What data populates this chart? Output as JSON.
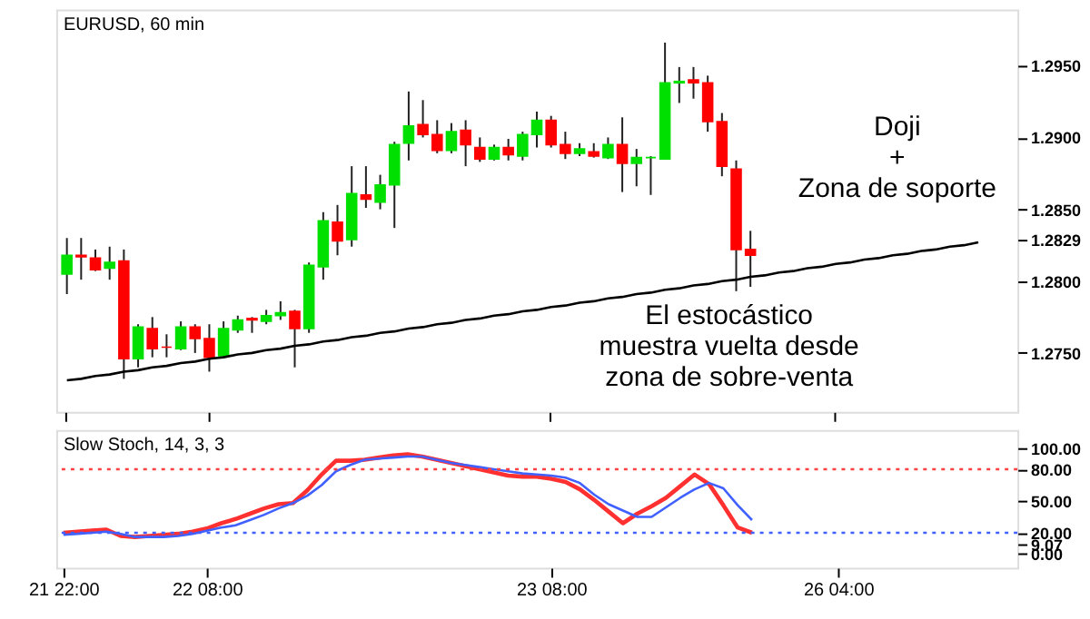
{
  "chart_data": [
    {
      "type": "candlestick",
      "title": "EURUSD, 60 min",
      "annotations": [
        "Doji\n+\nZona de soporte",
        "El estocástico\nmuestra vuelta desde\nzona de sobre-venta"
      ],
      "tick_labels": "y",
      "ylim": [
        1.2709,
        1.2989
      ],
      "yticks": [
        {
          "value": 1.275,
          "label": "1.2750"
        },
        {
          "value": 1.28,
          "label": "1.2800"
        },
        {
          "value": 1.2829,
          "label": "1.2829"
        },
        {
          "value": 1.285,
          "label": "1.2850"
        },
        {
          "value": 1.29,
          "label": "1.2900"
        },
        {
          "value": 1.295,
          "label": "1.2950"
        }
      ],
      "ohlc": [
        [
          1.2805,
          1.283,
          1.2791,
          1.2818
        ],
        [
          1.2818,
          1.283,
          1.2801,
          1.2817
        ],
        [
          1.2816,
          1.2822,
          1.2807,
          1.2808
        ],
        [
          1.2809,
          1.2824,
          1.2801,
          1.2813
        ],
        [
          1.2814,
          1.2822,
          1.2732,
          1.2746
        ],
        [
          1.2746,
          1.277,
          1.274,
          1.2768
        ],
        [
          1.2767,
          1.2775,
          1.2747,
          1.2753
        ],
        [
          1.2754,
          1.2763,
          1.2747,
          1.2754
        ],
        [
          1.2753,
          1.2772,
          1.2752,
          1.2768
        ],
        [
          1.2768,
          1.277,
          1.275,
          1.276
        ],
        [
          1.276,
          1.277,
          1.2737,
          1.2747
        ],
        [
          1.2748,
          1.2772,
          1.2747,
          1.2767
        ],
        [
          1.2766,
          1.2776,
          1.2764,
          1.2773
        ],
        [
          1.2774,
          1.2775,
          1.2764,
          1.2773
        ],
        [
          1.2772,
          1.278,
          1.277,
          1.2776
        ],
        [
          1.2776,
          1.2786,
          1.2773,
          1.2778
        ],
        [
          1.2779,
          1.278,
          1.274,
          1.2767
        ],
        [
          1.2767,
          1.2813,
          1.2764,
          1.2811
        ],
        [
          1.281,
          1.2848,
          1.2801,
          1.2842
        ],
        [
          1.2841,
          1.2853,
          1.2818,
          1.2828
        ],
        [
          1.2829,
          1.288,
          1.2824,
          1.2861
        ],
        [
          1.286,
          1.288,
          1.2851,
          1.2857
        ],
        [
          1.2855,
          1.2874,
          1.285,
          1.2867
        ],
        [
          1.2867,
          1.2897,
          1.2837,
          1.2895
        ],
        [
          1.2896,
          1.2932,
          1.2884,
          1.2908
        ],
        [
          1.2909,
          1.2926,
          1.29,
          1.2902
        ],
        [
          1.2902,
          1.2912,
          1.2889,
          1.2891
        ],
        [
          1.2891,
          1.291,
          1.2889,
          1.2904
        ],
        [
          1.2905,
          1.2912,
          1.288,
          1.2895
        ],
        [
          1.2893,
          1.29,
          1.2883,
          1.2885
        ],
        [
          1.2885,
          1.2895,
          1.2884,
          1.2893
        ],
        [
          1.2893,
          1.2899,
          1.2884,
          1.2888
        ],
        [
          1.2887,
          1.2904,
          1.2884,
          1.2902
        ],
        [
          1.2902,
          1.2918,
          1.2893,
          1.2912
        ],
        [
          1.2912,
          1.2915,
          1.2893,
          1.2895
        ],
        [
          1.2895,
          1.2904,
          1.2885,
          1.2889
        ],
        [
          1.2889,
          1.2896,
          1.2887,
          1.2892
        ],
        [
          1.289,
          1.2896,
          1.2886,
          1.2887
        ],
        [
          1.2886,
          1.29,
          1.2885,
          1.2895
        ],
        [
          1.2895,
          1.2914,
          1.2862,
          1.2882
        ],
        [
          1.2882,
          1.2892,
          1.2866,
          1.2886
        ],
        [
          1.2886,
          1.2887,
          1.286,
          1.2886
        ],
        [
          1.2885,
          1.2966,
          1.2885,
          1.2938
        ],
        [
          1.2938,
          1.2949,
          1.2924,
          1.2939
        ],
        [
          1.294,
          1.2949,
          1.2927,
          1.2938
        ],
        [
          1.2938,
          1.2943,
          1.2904,
          1.2911
        ],
        [
          1.2911,
          1.2917,
          1.2873,
          1.288
        ],
        [
          1.2878,
          1.2884,
          1.2793,
          1.2822
        ],
        [
          1.2822,
          1.2835,
          1.2796,
          1.2818
        ],
        null,
        null,
        null,
        null,
        null,
        null,
        null,
        null,
        null,
        null,
        null,
        null,
        null,
        null,
        null,
        null,
        null,
        null
      ],
      "colors": [
        "#00e000",
        "#ff0000",
        "#ff0000",
        "#00e000",
        "#ff0000",
        "#00e000",
        "#ff0000",
        "#ff0000",
        "#00e000",
        "#ff0000",
        "#ff0000",
        "#00e000",
        "#00e000",
        "#ff0000",
        "#00e000",
        "#00e000",
        "#ff0000",
        "#00e000",
        "#00e000",
        "#ff0000",
        "#00e000",
        "#ff0000",
        "#00e000",
        "#00e000",
        "#00e000",
        "#ff0000",
        "#ff0000",
        "#00e000",
        "#ff0000",
        "#ff0000",
        "#00e000",
        "#ff0000",
        "#00e000",
        "#00e000",
        "#ff0000",
        "#ff0000",
        "#00e000",
        "#ff0000",
        "#00e000",
        "#ff0000",
        "#00e000",
        "#00e000",
        "#00e000",
        "#00e000",
        "#ff0000",
        "#ff0000",
        "#ff0000",
        "#ff0000",
        "#ff0000",
        null,
        null,
        null,
        null,
        null,
        null,
        null,
        null,
        null,
        null,
        null,
        null,
        null,
        null,
        null,
        null,
        null,
        null
      ],
      "series": [
        {
          "type": "line",
          "color": "#000000",
          "values": [
            1.2731,
            1.2732,
            1.2734,
            1.2735,
            1.2737,
            1.2738,
            1.274,
            1.2741,
            1.2743,
            1.2744,
            1.2746,
            1.2747,
            1.2749,
            1.275,
            1.2752,
            1.2753,
            1.2755,
            1.2756,
            1.2758,
            1.2759,
            1.2761,
            1.2762,
            1.2764,
            1.2765,
            1.2767,
            1.2768,
            1.277,
            1.2771,
            1.2773,
            1.2774,
            1.2776,
            1.2777,
            1.2779,
            1.278,
            1.2782,
            1.2783,
            1.2785,
            1.2786,
            1.2788,
            1.2789,
            1.2791,
            1.2792,
            1.2794,
            1.2795,
            1.2797,
            1.2798,
            1.28,
            1.2801,
            1.2803,
            1.2804,
            1.2806,
            1.2807,
            1.2809,
            1.281,
            1.2812,
            1.2813,
            1.2815,
            1.2816,
            1.2818,
            1.2819,
            1.2821,
            1.2822,
            1.2824,
            1.2825,
            1.2827,
            null,
            null
          ]
        }
      ]
    },
    {
      "type": "line",
      "title": "Slow Stoch, 14, 3, 3",
      "categories": [
        "21 22:00",
        null,
        null,
        null,
        null,
        null,
        null,
        null,
        null,
        null,
        "22 08:00",
        null,
        null,
        null,
        null,
        null,
        null,
        null,
        null,
        null,
        null,
        null,
        null,
        null,
        null,
        null,
        null,
        null,
        null,
        null,
        null,
        null,
        null,
        null,
        "23 08:00",
        null,
        null,
        null,
        null,
        null,
        null,
        null,
        null,
        null,
        null,
        null,
        null,
        null,
        null,
        null,
        null,
        null,
        null,
        null,
        "26 04:00",
        null,
        null,
        null,
        null,
        null,
        null,
        null,
        null,
        null,
        null,
        null,
        null
      ],
      "ylim": [
        -13,
        117
      ],
      "yticks": [
        {
          "value": 0,
          "label": "0.00"
        },
        {
          "value": 9.07,
          "label": "9.07"
        },
        {
          "value": 20,
          "label": "20.00"
        },
        {
          "value": 50,
          "label": "50.00"
        },
        {
          "value": 80,
          "label": "80.00"
        },
        {
          "value": 100,
          "label": "100.00"
        }
      ],
      "ref_lines": [
        {
          "axis": "y",
          "value": 80,
          "color": "#ff4040",
          "line_style": "dotted"
        },
        {
          "axis": "y",
          "value": 20,
          "color": "#4060ff",
          "line_style": "dotted"
        }
      ],
      "series": [
        {
          "color": "#ff3030",
          "values": [
            20,
            21,
            22,
            23,
            17,
            16,
            17,
            18,
            19,
            21,
            24,
            29,
            33,
            38,
            43,
            47,
            48,
            60,
            75,
            88,
            88,
            89,
            91,
            93,
            94,
            92,
            89,
            86,
            83,
            80,
            77,
            74,
            73,
            73,
            71,
            68,
            61,
            51,
            40,
            29,
            38,
            45,
            53,
            64,
            75,
            66,
            46,
            25,
            20,
            null,
            null,
            null,
            null,
            null,
            null,
            null,
            null,
            null,
            null,
            null,
            null,
            null,
            null,
            null,
            null,
            null,
            null
          ]
        },
        {
          "color": "#4060ff",
          "values": [
            18,
            19,
            20,
            21,
            19,
            16,
            16,
            16,
            17,
            19,
            22,
            25,
            27,
            32,
            37,
            43,
            48,
            55,
            65,
            78,
            84,
            89,
            90,
            91,
            92,
            92,
            89,
            86,
            84,
            82,
            80,
            78,
            76,
            75,
            74,
            72,
            67,
            56,
            47,
            41,
            35,
            35,
            44,
            53,
            61,
            67,
            62,
            46,
            32,
            null,
            null,
            null,
            null,
            null,
            null,
            null,
            null,
            null,
            null,
            null,
            null,
            null,
            null,
            null,
            null,
            null,
            null
          ]
        }
      ]
    }
  ]
}
